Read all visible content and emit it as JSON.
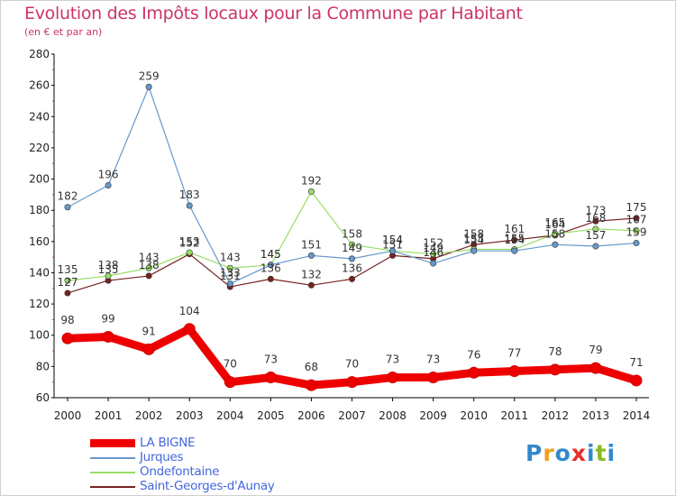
{
  "title": "Evolution des Impôts locaux pour la Commune par Habitant",
  "subtitle": "(en € et par an)",
  "logo": {
    "text": "Proxiti",
    "letters": [
      "P",
      "r",
      "o",
      "x",
      "i",
      "t",
      "i"
    ],
    "colors": [
      "#3388cc",
      "#f0a020",
      "#3388cc",
      "#e8302a",
      "#3388cc",
      "#88bb22",
      "#3388cc"
    ]
  },
  "chart_data": {
    "type": "line",
    "title": "Evolution des Impôts locaux pour la Commune par Habitant",
    "subtitle": "(en € et par an)",
    "x": [
      "2000",
      "2001",
      "2002",
      "2003",
      "2004",
      "2005",
      "2006",
      "2007",
      "2008",
      "2009",
      "2010",
      "2011",
      "2012",
      "2013",
      "2014"
    ],
    "ylim": [
      60,
      280
    ],
    "yticks": [
      "60",
      "80",
      "100",
      "120",
      "140",
      "160",
      "180",
      "200",
      "220",
      "240",
      "260",
      "280"
    ],
    "grid": false,
    "legend": "bottom-left",
    "series": [
      {
        "name": "LA BIGNE",
        "color": "#ee0000",
        "values": [
          98,
          99,
          91,
          104,
          70,
          73,
          68,
          70,
          73,
          73,
          76,
          77,
          78,
          79,
          71
        ],
        "labels": [
          "98",
          "99",
          "91",
          "104",
          "70",
          "73",
          "68",
          "70",
          "73",
          "73",
          "76",
          "77",
          "78",
          "79",
          "71"
        ]
      },
      {
        "name": "Jurques",
        "color": "#6699cc",
        "values": [
          182,
          196,
          259,
          183,
          133,
          145,
          151,
          149,
          154,
          146,
          154,
          154,
          158,
          157,
          159
        ],
        "labels": [
          "182",
          "196",
          "259",
          "183",
          "133",
          "145",
          "151",
          "149",
          "154",
          "146",
          "154",
          "154",
          "158",
          "157",
          "159"
        ]
      },
      {
        "name": "Ondefontaine",
        "color": "#99dd66",
        "values": [
          135,
          138,
          143,
          153,
          143,
          145,
          192,
          158,
          154,
          152,
          155,
          155,
          165,
          168,
          167
        ],
        "labels": [
          "135",
          "138",
          "143",
          "153",
          "143",
          "145",
          "192",
          "158",
          "154",
          "152",
          "155",
          "155",
          "165",
          "168",
          "167"
        ]
      },
      {
        "name": "Saint-Georges-d'Aunay",
        "color": "#772222",
        "values": [
          127,
          135,
          138,
          152,
          131,
          136,
          132,
          136,
          151,
          149,
          158,
          161,
          164,
          173,
          175
        ],
        "labels": [
          "127",
          "135",
          "138",
          "152",
          "131",
          "136",
          "132",
          "136",
          "151",
          "149",
          "158",
          "161",
          "164",
          "173",
          "175"
        ]
      }
    ]
  }
}
